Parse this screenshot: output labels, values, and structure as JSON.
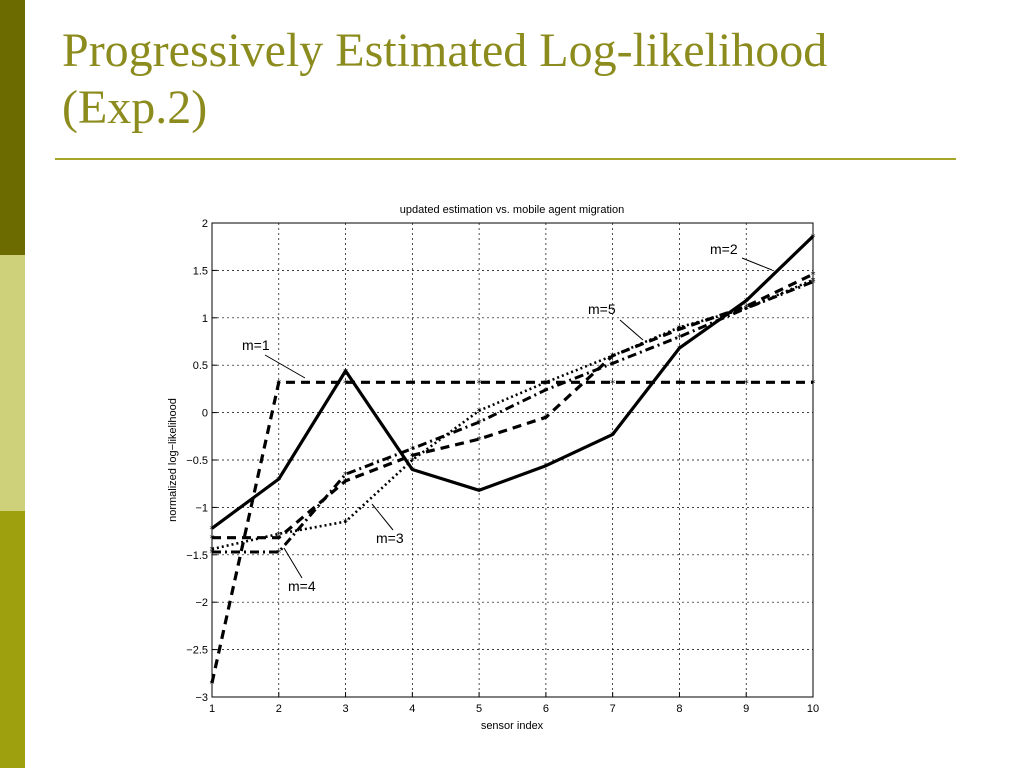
{
  "slide": {
    "title_line1": "Progressively Estimated Log-likelihood",
    "title_line2": "(Exp.2)"
  },
  "colors": {
    "title": "#8c8c1e",
    "sidebar_dark": "#6b6b00",
    "sidebar_light": "#cfd17a",
    "sidebar_mid": "#9ea00e",
    "rule": "#a6a626"
  },
  "chart_data": {
    "type": "line",
    "title": "updated estimation vs. mobile agent migration",
    "xlabel": "sensor index",
    "ylabel": "normalized log−likelihood",
    "xlim": [
      1,
      10
    ],
    "ylim": [
      -3,
      2
    ],
    "grid": true,
    "x": [
      1,
      2,
      3,
      4,
      5,
      6,
      7,
      8,
      9,
      10
    ],
    "x_ticks": [
      "1",
      "2",
      "3",
      "4",
      "5",
      "6",
      "7",
      "8",
      "9",
      "10"
    ],
    "y_ticks": [
      "2",
      "1.5",
      "1",
      "0.5",
      "0",
      "−0.5",
      "−1",
      "−1.5",
      "−2",
      "−2.5",
      "−3"
    ],
    "series": [
      {
        "name": "m=1",
        "style": "dashed",
        "values": [
          -2.85,
          0.32,
          0.32,
          0.32,
          0.32,
          0.32,
          0.32,
          0.32,
          0.32,
          0.32
        ]
      },
      {
        "name": "m=2",
        "style": "solid",
        "values": [
          -1.22,
          -0.7,
          0.44,
          -0.6,
          -0.82,
          -0.56,
          -0.23,
          0.68,
          1.18,
          1.86
        ]
      },
      {
        "name": "m=3",
        "style": "dotted",
        "values": [
          -1.44,
          -1.28,
          -1.15,
          -0.5,
          0.02,
          0.32,
          0.6,
          0.9,
          1.1,
          1.4
        ]
      },
      {
        "name": "m=4",
        "style": "dashdot",
        "values": [
          -1.47,
          -1.47,
          -0.65,
          -0.38,
          -0.1,
          0.24,
          0.52,
          0.8,
          1.1,
          1.38
        ]
      },
      {
        "name": "m=5",
        "style": "dashed",
        "values": [
          -1.32,
          -1.32,
          -0.72,
          -0.45,
          -0.28,
          -0.05,
          0.6,
          0.88,
          1.12,
          1.46
        ]
      }
    ],
    "annotations": [
      "m=1",
      "m=2",
      "m=3",
      "m=4",
      "m=5"
    ]
  }
}
